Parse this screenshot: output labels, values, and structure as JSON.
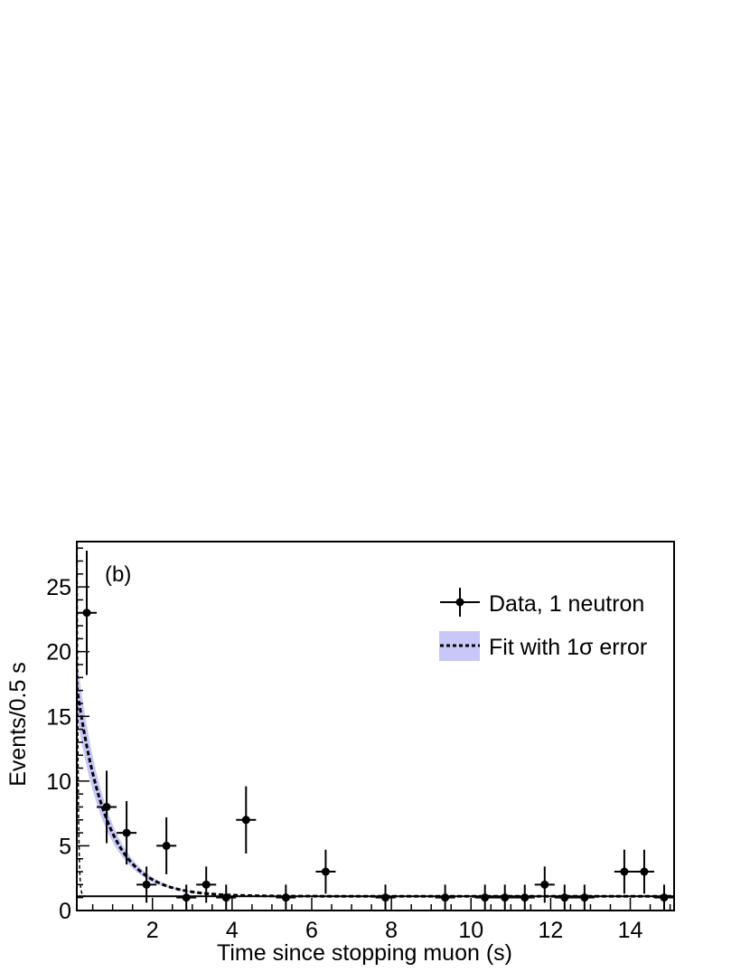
{
  "chart_data": {
    "type": "scatter",
    "panel_label": "(b)",
    "xlabel": "Time since stopping muon (s)",
    "ylabel": "Events/0.5 s",
    "xlim": [
      0.1,
      15.1
    ],
    "ylim": [
      0,
      28.5
    ],
    "x_ticks": [
      2,
      4,
      6,
      8,
      10,
      12,
      14
    ],
    "y_ticks": [
      0,
      5,
      10,
      15,
      20,
      25
    ],
    "legend": {
      "position": "top-right",
      "entries": [
        {
          "label": "Data, 1 neutron",
          "style": "points-with-errorbars"
        },
        {
          "label": "Fit with 1σ error",
          "style": "dashed-line-with-band"
        }
      ]
    },
    "colors": {
      "band": "#c8c8f8",
      "data": "#000000",
      "fit": "#000000"
    },
    "series": [
      {
        "name": "Data, 1 neutron",
        "x": [
          0.35,
          0.85,
          1.35,
          1.85,
          2.35,
          2.85,
          3.35,
          3.85,
          4.35,
          5.35,
          6.35,
          7.85,
          9.35,
          10.35,
          10.85,
          11.35,
          11.85,
          12.35,
          12.85,
          13.85,
          14.35,
          14.85
        ],
        "y": [
          23,
          8,
          6,
          2,
          5,
          1,
          2,
          1,
          7,
          1,
          3,
          1,
          1,
          1,
          1,
          1,
          2,
          1,
          1,
          3,
          3,
          1
        ],
        "yerr_lo": [
          4.8,
          2.8,
          2.45,
          1.4,
          2.2,
          1,
          1.4,
          1,
          2.6,
          1,
          1.7,
          1,
          1,
          1,
          1,
          1,
          1.4,
          1,
          1,
          1.7,
          1.7,
          1
        ],
        "yerr_hi": [
          4.8,
          2.8,
          2.45,
          1.4,
          2.2,
          1,
          1.4,
          1,
          2.6,
          1,
          1.7,
          1,
          1,
          1,
          1,
          1,
          1.4,
          1,
          1,
          1.7,
          1.7,
          1
        ],
        "xerr": 0.25
      }
    ],
    "fit": {
      "baseline": 1.1,
      "amplitude": 18.5,
      "decay_time_s": 0.75,
      "band_rel_error": 0.14
    },
    "fast_component": {
      "baseline": 1.1,
      "amplitude": 2000,
      "decay_time_s": 0.025
    }
  }
}
